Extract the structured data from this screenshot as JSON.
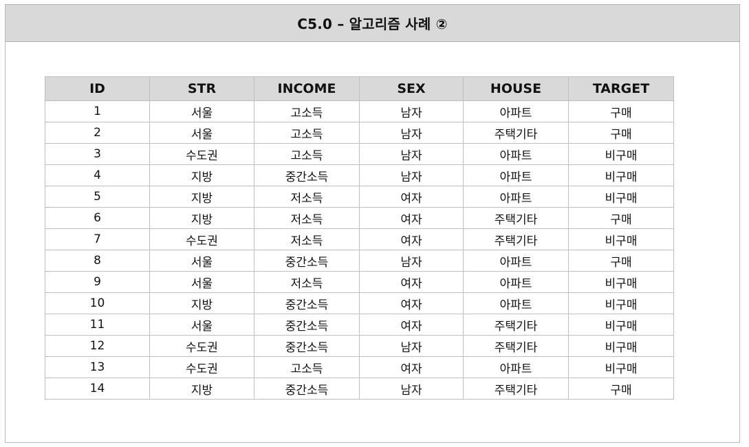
{
  "title": "C5.0 – 알고리즘 사례 ②",
  "table": {
    "headers": [
      "ID",
      "STR",
      "INCOME",
      "SEX",
      "HOUSE",
      "TARGET"
    ],
    "rows": [
      [
        "1",
        "서울",
        "고소득",
        "남자",
        "아파트",
        "구매"
      ],
      [
        "2",
        "서울",
        "고소득",
        "남자",
        "주택기타",
        "구매"
      ],
      [
        "3",
        "수도권",
        "고소득",
        "남자",
        "아파트",
        "비구매"
      ],
      [
        "4",
        "지방",
        "중간소득",
        "남자",
        "아파트",
        "비구매"
      ],
      [
        "5",
        "지방",
        "저소득",
        "여자",
        "아파트",
        "비구매"
      ],
      [
        "6",
        "지방",
        "저소득",
        "여자",
        "주택기타",
        "구매"
      ],
      [
        "7",
        "수도권",
        "저소득",
        "여자",
        "주택기타",
        "비구매"
      ],
      [
        "8",
        "서울",
        "중간소득",
        "남자",
        "아파트",
        "구매"
      ],
      [
        "9",
        "서울",
        "저소득",
        "여자",
        "아파트",
        "비구매"
      ],
      [
        "10",
        "지방",
        "중간소득",
        "여자",
        "아파트",
        "비구매"
      ],
      [
        "11",
        "서울",
        "중간소득",
        "여자",
        "주택기타",
        "비구매"
      ],
      [
        "12",
        "수도권",
        "중간소득",
        "남자",
        "주택기타",
        "비구매"
      ],
      [
        "13",
        "수도권",
        "고소득",
        "여자",
        "아파트",
        "비구매"
      ],
      [
        "14",
        "지방",
        "중간소득",
        "남자",
        "주택기타",
        "구매"
      ]
    ]
  }
}
